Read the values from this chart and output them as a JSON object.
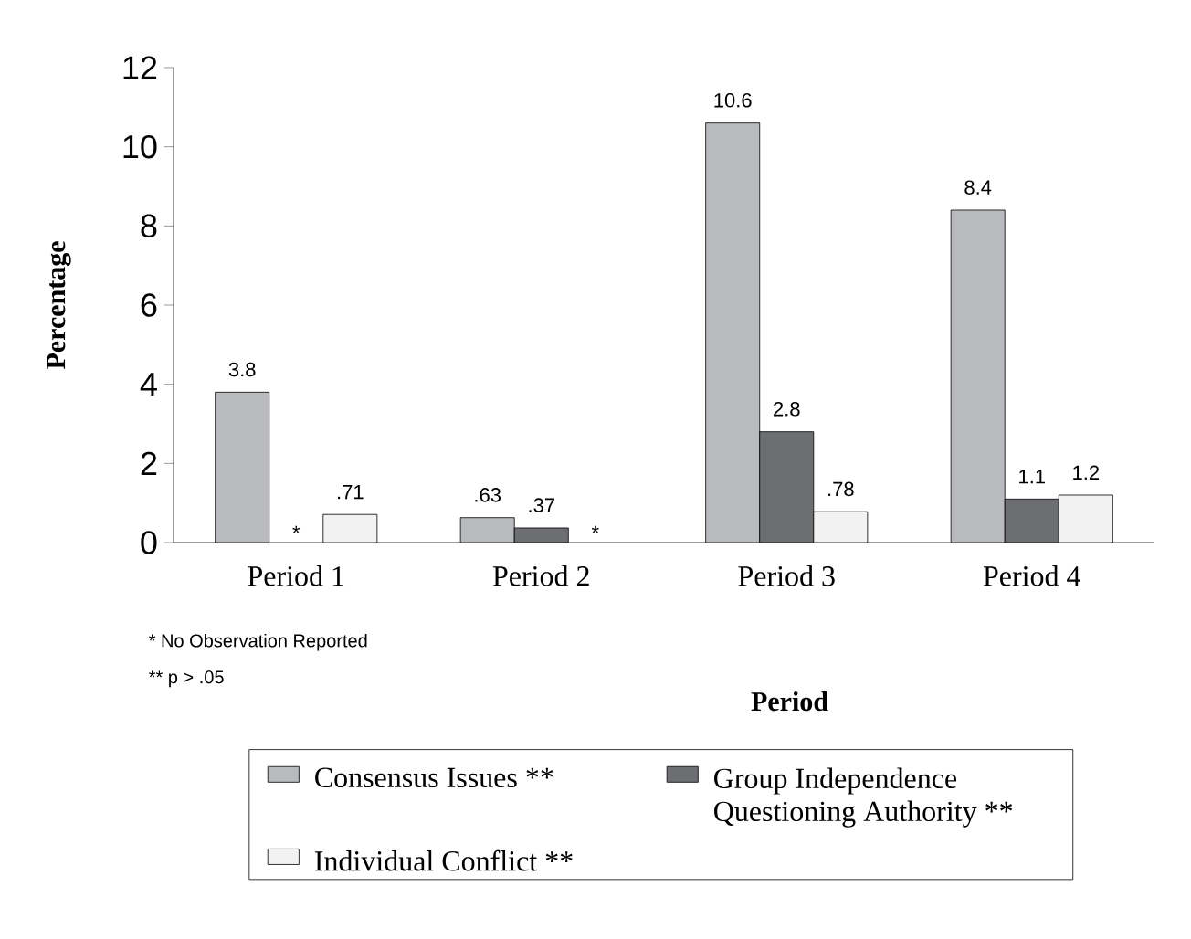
{
  "chart_data": {
    "type": "bar",
    "xlabel": "Period",
    "ylabel": "Percentage",
    "categories": [
      "Period 1",
      "Period 2",
      "Period 3",
      "Period 4"
    ],
    "series": [
      {
        "name": "Consensus Issues **",
        "color": "#b9babe",
        "values": [
          3.8,
          0.63,
          10.6,
          8.4
        ],
        "value_labels": [
          "3.8",
          ".63",
          "10.6",
          "8.4"
        ]
      },
      {
        "name": "Group Independence Questioning Authority **",
        "color": "#6d6e72",
        "values": [
          null,
          0.37,
          2.8,
          1.1
        ],
        "value_labels": [
          "*",
          ".37",
          "2.8",
          "1.1"
        ]
      },
      {
        "name": "Individual Conflict **",
        "color": "#f2f2f2",
        "values": [
          0.71,
          null,
          0.78,
          1.2
        ],
        "value_labels": [
          ".71",
          "*",
          ".78",
          "1.2"
        ]
      }
    ],
    "ylim": [
      0,
      12
    ],
    "yticks": [
      0,
      2,
      4,
      6,
      8,
      10,
      12
    ],
    "legend": "bottom",
    "annotations": [
      "* No Observation Reported",
      "** p > .05"
    ]
  }
}
